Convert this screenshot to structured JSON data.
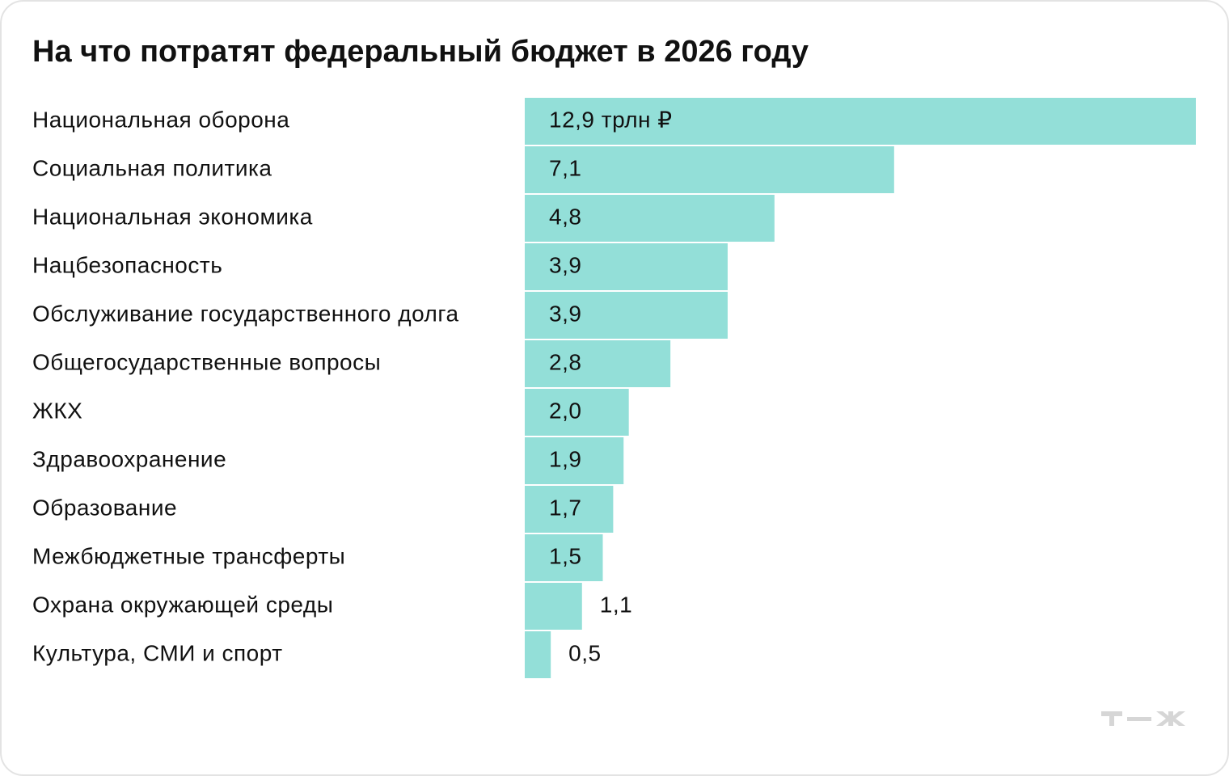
{
  "chart_data": {
    "type": "bar",
    "orientation": "horizontal",
    "title": "На что потратят федеральный бюджет в 2026 году",
    "categories": [
      "Национальная оборона",
      "Социальная политика",
      "Национальная экономика",
      "Нацбезопасность",
      "Обслуживание государственного долга",
      "Общегосударственные вопросы",
      "ЖКХ",
      "Здравоохранение",
      "Образование",
      "Межбюджетные трансферты",
      "Охрана окружающей среды",
      "Культура, СМИ и спорт"
    ],
    "values": [
      12.9,
      7.1,
      4.8,
      3.9,
      3.9,
      2.8,
      2.0,
      1.9,
      1.7,
      1.5,
      1.1,
      0.5
    ],
    "value_labels": [
      "12,9 трлн ₽",
      "7,1",
      "4,8",
      "3,9",
      "3,9",
      "2,8",
      "2,0",
      "1,9",
      "1,7",
      "1,5",
      "1,1",
      "0,5"
    ],
    "color": "#93dfd8"
  }
}
